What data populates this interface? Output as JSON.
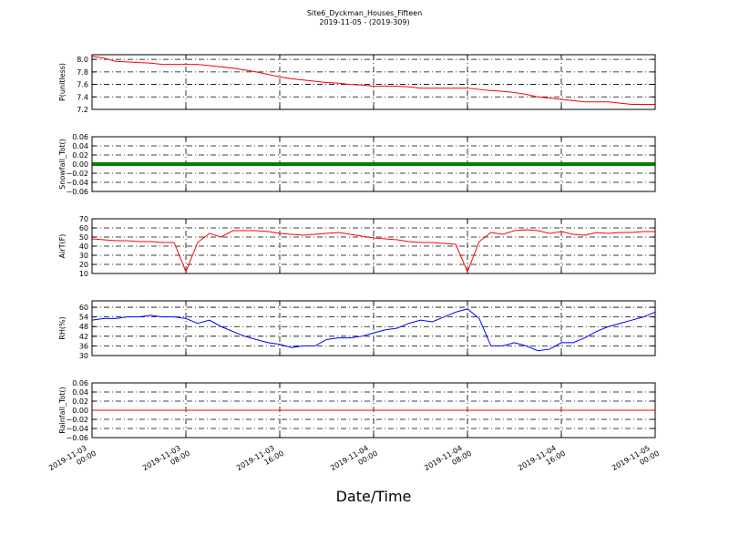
{
  "title": "Site6_Dyckman_Houses_Fifteen",
  "subtitle": "2019-11-05 - (2019-309)",
  "xlabel": "Date/Time",
  "xlim": [
    "2019-11-03 00:00",
    "2019-11-05 00:00"
  ],
  "xticks": [
    "2019-11-03 00:00",
    "2019-11-03 08:00",
    "2019-11-03 16:00",
    "2019-11-04 00:00",
    "2019-11-04 08:00",
    "2019-11-04 16:00",
    "2019-11-05 00:00"
  ],
  "grid": true,
  "x": [
    "2019-11-03 00:00",
    "2019-11-03 01:00",
    "2019-11-03 02:00",
    "2019-11-03 03:00",
    "2019-11-03 04:00",
    "2019-11-03 05:00",
    "2019-11-03 06:00",
    "2019-11-03 07:00",
    "2019-11-03 08:00",
    "2019-11-03 09:00",
    "2019-11-03 10:00",
    "2019-11-03 11:00",
    "2019-11-03 12:00",
    "2019-11-03 13:00",
    "2019-11-03 14:00",
    "2019-11-03 15:00",
    "2019-11-03 16:00",
    "2019-11-03 17:00",
    "2019-11-03 18:00",
    "2019-11-03 19:00",
    "2019-11-03 20:00",
    "2019-11-03 21:00",
    "2019-11-03 22:00",
    "2019-11-03 23:00",
    "2019-11-04 00:00",
    "2019-11-04 01:00",
    "2019-11-04 02:00",
    "2019-11-04 03:00",
    "2019-11-04 04:00",
    "2019-11-04 05:00",
    "2019-11-04 06:00",
    "2019-11-04 07:00",
    "2019-11-04 08:00",
    "2019-11-04 09:00",
    "2019-11-04 10:00",
    "2019-11-04 11:00",
    "2019-11-04 12:00",
    "2019-11-04 13:00",
    "2019-11-04 14:00",
    "2019-11-04 15:00",
    "2019-11-04 16:00",
    "2019-11-04 17:00",
    "2019-11-04 18:00",
    "2019-11-04 19:00",
    "2019-11-04 20:00",
    "2019-11-04 21:00",
    "2019-11-04 22:00",
    "2019-11-04 23:00",
    "2019-11-05 00:00"
  ],
  "chart_data": [
    {
      "type": "line",
      "ylabel": "P(unitless)",
      "color": "#ff0000",
      "ylim": [
        7.2,
        8.075
      ],
      "yticks": [
        7.2,
        7.4,
        7.6,
        7.8,
        {
          "value": 8,
          "label": "8.0"
        }
      ],
      "values": [
        8.05,
        8.02,
        7.97,
        7.96,
        7.95,
        7.94,
        7.92,
        7.92,
        7.92,
        7.92,
        7.9,
        7.88,
        7.86,
        7.83,
        7.8,
        7.76,
        7.72,
        7.69,
        7.67,
        7.65,
        7.63,
        7.62,
        7.6,
        7.59,
        7.57,
        7.57,
        7.57,
        7.56,
        7.54,
        7.54,
        7.54,
        7.54,
        7.54,
        7.52,
        7.5,
        7.49,
        7.47,
        7.44,
        7.4,
        7.38,
        7.36,
        7.34,
        7.32,
        7.32,
        7.32,
        7.3,
        7.28,
        7.28,
        7.28
      ]
    },
    {
      "type": "line",
      "ylabel": "Snowfall_Tot()",
      "color": "#008000",
      "ylim": [
        -0.06,
        0.06
      ],
      "yticks": [
        {
          "value": -0.06,
          "label": "−0.06"
        },
        {
          "value": -0.04,
          "label": "−0.04"
        },
        {
          "value": -0.02,
          "label": "−0.02"
        },
        {
          "value": 0,
          "label": "0.00"
        },
        0.02,
        0.04,
        0.06
      ],
      "values": [
        0,
        0,
        0,
        0,
        0,
        0,
        0,
        0,
        0,
        0,
        0,
        0,
        0,
        0,
        0,
        0,
        0,
        0,
        0,
        0,
        0,
        0,
        0,
        0,
        0,
        0,
        0,
        0,
        0,
        0,
        0,
        0,
        0,
        0,
        0,
        0,
        0,
        0,
        0,
        0,
        0,
        0,
        0,
        0,
        0,
        0,
        0,
        0,
        0
      ]
    },
    {
      "type": "line",
      "ylabel": "AirT(F)",
      "color": "#ff0000",
      "ylim": [
        10,
        70
      ],
      "yticks": [
        10,
        20,
        30,
        40,
        50,
        60,
        70
      ],
      "values": [
        48,
        47,
        46,
        46,
        45,
        45,
        44,
        44,
        12,
        44,
        54,
        50,
        57,
        57,
        57,
        56,
        54,
        53,
        52,
        53,
        54,
        55,
        53,
        51,
        49,
        48,
        47,
        45,
        44,
        44,
        43,
        42,
        12,
        45,
        55,
        53,
        57,
        58,
        57,
        54,
        56,
        53,
        52,
        55,
        54,
        55,
        55,
        56,
        56
      ]
    },
    {
      "type": "line",
      "ylabel": "RH(%)",
      "color": "#0000ff",
      "ylim": [
        30,
        64
      ],
      "yticks": [
        30,
        36,
        42,
        48,
        54,
        60
      ],
      "values": [
        52,
        53,
        53,
        54,
        54,
        55,
        54,
        54,
        53,
        50,
        52,
        48,
        45,
        42,
        40,
        38,
        37,
        35,
        36,
        36,
        40,
        41,
        41,
        42,
        44,
        46,
        47,
        50,
        52,
        51,
        54,
        57,
        59,
        53,
        36,
        36,
        38,
        36,
        33,
        34,
        38,
        38,
        41,
        45,
        48,
        50,
        52,
        54,
        57
      ]
    },
    {
      "type": "line",
      "ylabel": "Rainfall_Tot()",
      "color": "#ff0000",
      "ylim": [
        -0.06,
        0.06
      ],
      "yticks": [
        {
          "value": -0.06,
          "label": "−0.06"
        },
        {
          "value": -0.04,
          "label": "−0.04"
        },
        {
          "value": -0.02,
          "label": "−0.02"
        },
        {
          "value": 0,
          "label": "0.00"
        },
        0.02,
        0.04,
        0.06
      ],
      "values": [
        0,
        0,
        0,
        0,
        0,
        0,
        0,
        0,
        0,
        0,
        0,
        0,
        0,
        0,
        0,
        0,
        0,
        0,
        0,
        0,
        0,
        0,
        0,
        0,
        0,
        0,
        0,
        0,
        0,
        0,
        0,
        0,
        0,
        0,
        0,
        0,
        0,
        0,
        0,
        0,
        0,
        0,
        0,
        0,
        0,
        0,
        0,
        0,
        0
      ]
    }
  ]
}
